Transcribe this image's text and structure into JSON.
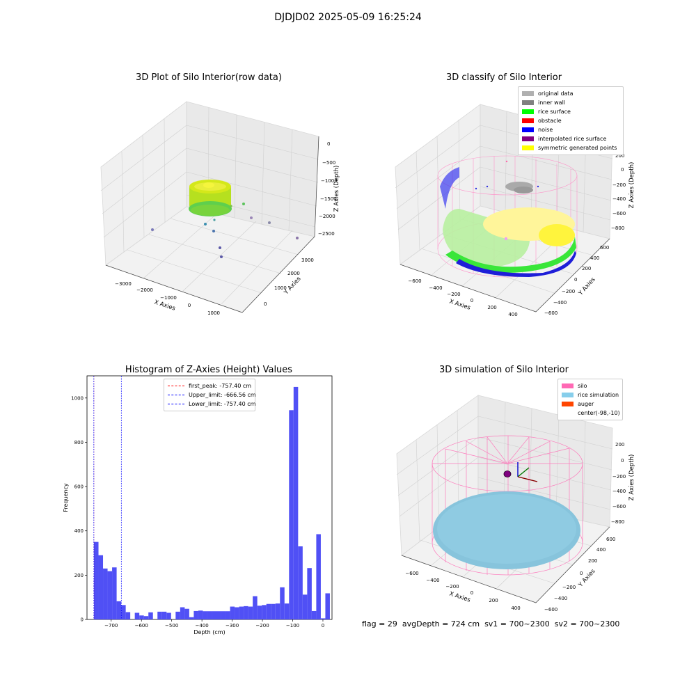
{
  "figure": {
    "suptitle": "DJDJD02 2025-05-09 16:25:24"
  },
  "panel1": {
    "title": "3D Plot of Silo Interior(row data)",
    "xlabel": "X Axies",
    "ylabel": "Y Axies",
    "zlabel": "Z Axies (Depth)",
    "xticks": [
      "−3000",
      "−2000",
      "−1000",
      "0",
      "1000"
    ],
    "yticks": [
      "0",
      "1000",
      "2000",
      "3000"
    ],
    "zticks": [
      "0",
      "−500",
      "−1000",
      "−1500",
      "−2000",
      "−2500"
    ]
  },
  "panel2": {
    "title": "3D classify of Silo Interior",
    "xlabel": "X Axies",
    "ylabel": "Y Axies",
    "zlabel": "Z Axies (Depth)",
    "xticks": [
      "−600",
      "−400",
      "−200",
      "0",
      "200",
      "400"
    ],
    "yticks": [
      "−600",
      "−400",
      "−200",
      "0",
      "200",
      "400",
      "600"
    ],
    "zticks": [
      "200",
      "0",
      "−200",
      "−400",
      "−600",
      "−800"
    ],
    "legend": [
      {
        "label": "original data",
        "color": "#b0b0b0"
      },
      {
        "label": "inner wall",
        "color": "#808080"
      },
      {
        "label": "rice surface",
        "color": "#00ff00"
      },
      {
        "label": "obstacle",
        "color": "#ff0000"
      },
      {
        "label": "noise",
        "color": "#0000ff"
      },
      {
        "label": "interpolated rice surface",
        "color": "#800080"
      },
      {
        "label": "symmetric generated points",
        "color": "#ffff00"
      }
    ]
  },
  "panel3": {
    "title": "3D simulation of Silo Interior",
    "xlabel": "X Axies",
    "ylabel": "Y Axies",
    "zlabel": "Z Axies (Depth)",
    "xticks": [
      "−600",
      "−400",
      "−200",
      "0",
      "200",
      "400"
    ],
    "yticks": [
      "−600",
      "−400",
      "−200",
      "0",
      "200",
      "400",
      "600"
    ],
    "zticks": [
      "200",
      "0",
      "−200",
      "−400",
      "−600",
      "−800"
    ],
    "legend": [
      {
        "label": "silo",
        "color": "#ff69b4"
      },
      {
        "label": "rice simulation",
        "color": "#87ceeb"
      },
      {
        "label": "auger",
        "color": "#ff4500"
      },
      {
        "label": "center(-98,-10)",
        "color": ""
      }
    ]
  },
  "footer": {
    "flag": "flag = 29",
    "avg": "avgDepth = 724 cm",
    "sv1": "sv1 = 700~2300",
    "sv2": "sv2 = 700~2300"
  },
  "chart_data": {
    "type": "bar",
    "title": "Histogram of Z-Axies (Height) Values",
    "xlabel": "Depth (cm)",
    "ylabel": "Frequency",
    "xlim": [
      -780,
      30
    ],
    "ylim": [
      0,
      1100
    ],
    "xticks": [
      -700,
      -600,
      -500,
      -400,
      -300,
      -200,
      -100,
      0
    ],
    "yticks": [
      0,
      200,
      400,
      600,
      800,
      1000
    ],
    "bar_color": "#5050f5",
    "bin_width": 15,
    "bins": [
      [
        -757,
        350
      ],
      [
        -742,
        290
      ],
      [
        -727,
        230
      ],
      [
        -712,
        218
      ],
      [
        -697,
        235
      ],
      [
        -682,
        82
      ],
      [
        -667,
        65
      ],
      [
        -652,
        33
      ],
      [
        -637,
        0
      ],
      [
        -622,
        30
      ],
      [
        -607,
        18
      ],
      [
        -592,
        15
      ],
      [
        -577,
        32
      ],
      [
        -562,
        0
      ],
      [
        -547,
        35
      ],
      [
        -532,
        35
      ],
      [
        -517,
        30
      ],
      [
        -502,
        0
      ],
      [
        -487,
        35
      ],
      [
        -472,
        55
      ],
      [
        -457,
        48
      ],
      [
        -442,
        10
      ],
      [
        -427,
        38
      ],
      [
        -412,
        40
      ],
      [
        -397,
        37
      ],
      [
        -382,
        37
      ],
      [
        -367,
        37
      ],
      [
        -352,
        37
      ],
      [
        -337,
        37
      ],
      [
        -322,
        37
      ],
      [
        -307,
        58
      ],
      [
        -292,
        55
      ],
      [
        -277,
        58
      ],
      [
        -262,
        60
      ],
      [
        -247,
        58
      ],
      [
        -232,
        105
      ],
      [
        -217,
        62
      ],
      [
        -202,
        65
      ],
      [
        -187,
        70
      ],
      [
        -172,
        70
      ],
      [
        -157,
        72
      ],
      [
        -142,
        145
      ],
      [
        -127,
        72
      ],
      [
        -112,
        945
      ],
      [
        -97,
        1050
      ],
      [
        -82,
        330
      ],
      [
        -67,
        112
      ],
      [
        -52,
        232
      ],
      [
        -37,
        38
      ],
      [
        -22,
        385
      ],
      [
        -7,
        5
      ],
      [
        8,
        118
      ]
    ],
    "vlines": [
      {
        "x": -757.4,
        "color": "#ff0000",
        "label": "first_peak: -757.40 cm"
      },
      {
        "x": -666.56,
        "color": "#0000ff",
        "label": "Upper_limit: -666.56 cm"
      },
      {
        "x": -757.4,
        "color": "#0000ff",
        "label": "Lower_limit: -757.40 cm"
      }
    ]
  }
}
